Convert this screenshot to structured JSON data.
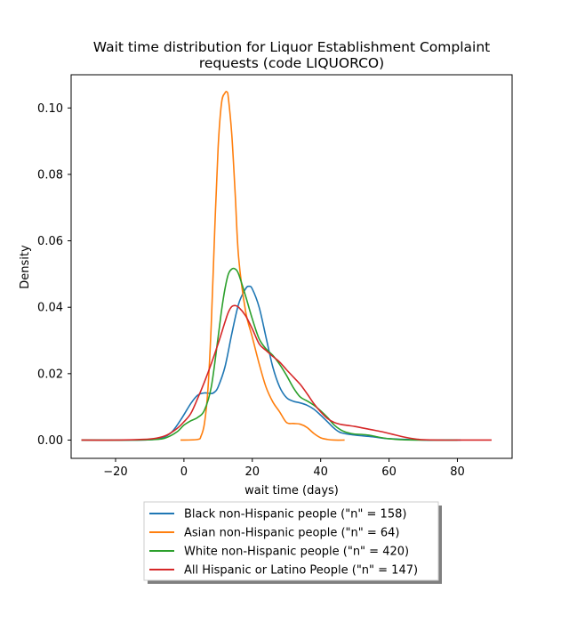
{
  "chart_data": {
    "type": "line",
    "title": "Wait time distribution  for Liquor Establishment Complaint",
    "title_line2": "requests (code LIQUORCO)",
    "xlabel": "wait time (days)",
    "ylabel": "Density",
    "xlim": [
      -33,
      96
    ],
    "ylim": [
      -0.0055,
      0.11
    ],
    "xticks": [
      -20,
      0,
      20,
      40,
      60,
      80
    ],
    "xtick_labels": [
      "−20",
      "0",
      "20",
      "40",
      "60",
      "80"
    ],
    "yticks": [
      0.0,
      0.02,
      0.04,
      0.06,
      0.08,
      0.1
    ],
    "ytick_labels": [
      "0.00",
      "0.02",
      "0.04",
      "0.06",
      "0.08",
      "0.10"
    ],
    "grid": false,
    "legend_position": "below-plot",
    "series": [
      {
        "name": "Black non-Hispanic people (\"n\" = 158)",
        "color": "#1f77b4",
        "x": [
          -30,
          -15,
          -8,
          -4,
          -1,
          2,
          4,
          6,
          8,
          9,
          10,
          12,
          14,
          16,
          18,
          19,
          20,
          22,
          24,
          26,
          28,
          30,
          32,
          34,
          36,
          38,
          40,
          42,
          44,
          46,
          50,
          55,
          60,
          65,
          70,
          75,
          81
        ],
        "y": [
          0.0,
          0.0,
          0.0003,
          0.002,
          0.006,
          0.011,
          0.0135,
          0.0142,
          0.014,
          0.0145,
          0.016,
          0.022,
          0.032,
          0.041,
          0.0455,
          0.0463,
          0.0455,
          0.04,
          0.031,
          0.022,
          0.016,
          0.0128,
          0.0117,
          0.0112,
          0.0105,
          0.0093,
          0.0075,
          0.0055,
          0.0035,
          0.0022,
          0.0015,
          0.001,
          0.0004,
          0.0002,
          0.0,
          0.0,
          0.0
        ]
      },
      {
        "name": "Asian non-Hispanic people (\"n\" = 64)",
        "color": "#ff7f0e",
        "x": [
          -1,
          4,
          5,
          6,
          7,
          8,
          9,
          10,
          11,
          12,
          12.6,
          13,
          14,
          15,
          16,
          18,
          20,
          22,
          24,
          26,
          28,
          30,
          32,
          34,
          36,
          38,
          40,
          42,
          44,
          47
        ],
        "y": [
          0.0,
          0.0002,
          0.0012,
          0.005,
          0.015,
          0.035,
          0.063,
          0.088,
          0.1015,
          0.1045,
          0.1048,
          0.103,
          0.092,
          0.074,
          0.055,
          0.039,
          0.031,
          0.023,
          0.016,
          0.0115,
          0.0085,
          0.0053,
          0.005,
          0.0048,
          0.0038,
          0.002,
          0.0007,
          0.0002,
          0.0,
          0.0
        ]
      },
      {
        "name": "White non-Hispanic people (\"n\" = 420)",
        "color": "#2ca02c",
        "x": [
          -30,
          -15,
          -8,
          -5,
          -2,
          0,
          2,
          4,
          6,
          8,
          10,
          11,
          12,
          13,
          14,
          15,
          16,
          18,
          20,
          22,
          24,
          26,
          28,
          30,
          32,
          34,
          36,
          38,
          40,
          42,
          44,
          46,
          48,
          50,
          52,
          54,
          56,
          58,
          60,
          64,
          70,
          80
        ],
        "y": [
          0.0,
          0.0,
          0.0002,
          0.0008,
          0.0025,
          0.0045,
          0.0058,
          0.0068,
          0.009,
          0.016,
          0.031,
          0.039,
          0.0455,
          0.05,
          0.0515,
          0.0515,
          0.05,
          0.0435,
          0.0365,
          0.0305,
          0.0275,
          0.0255,
          0.0228,
          0.0195,
          0.0158,
          0.013,
          0.0118,
          0.0105,
          0.0088,
          0.0068,
          0.0045,
          0.003,
          0.0022,
          0.0018,
          0.0017,
          0.0015,
          0.0011,
          0.0007,
          0.0004,
          0.0001,
          0.0,
          0.0
        ]
      },
      {
        "name": "All Hispanic or Latino People (\"n\" = 147)",
        "color": "#d62728",
        "x": [
          -30,
          -20,
          -12,
          -8,
          -5,
          -2,
          0,
          2,
          4,
          6,
          8,
          10,
          12,
          13,
          14,
          15,
          16,
          18,
          20,
          22,
          24,
          26,
          28,
          30,
          32,
          34,
          36,
          38,
          40,
          42,
          44,
          46,
          48,
          50,
          52,
          54,
          56,
          58,
          60,
          62,
          64,
          66,
          68,
          70,
          75,
          80,
          90
        ],
        "y": [
          0.0,
          0.0,
          0.0002,
          0.0006,
          0.0015,
          0.0035,
          0.0055,
          0.008,
          0.0125,
          0.0175,
          0.023,
          0.029,
          0.0355,
          0.0385,
          0.0402,
          0.0405,
          0.04,
          0.0375,
          0.0335,
          0.029,
          0.027,
          0.0252,
          0.0235,
          0.0212,
          0.019,
          0.0168,
          0.014,
          0.011,
          0.0085,
          0.0065,
          0.0053,
          0.0047,
          0.0044,
          0.0041,
          0.0037,
          0.0033,
          0.0029,
          0.0025,
          0.002,
          0.0015,
          0.001,
          0.0006,
          0.0003,
          0.0001,
          0.0,
          0.0,
          0.0
        ]
      }
    ]
  }
}
